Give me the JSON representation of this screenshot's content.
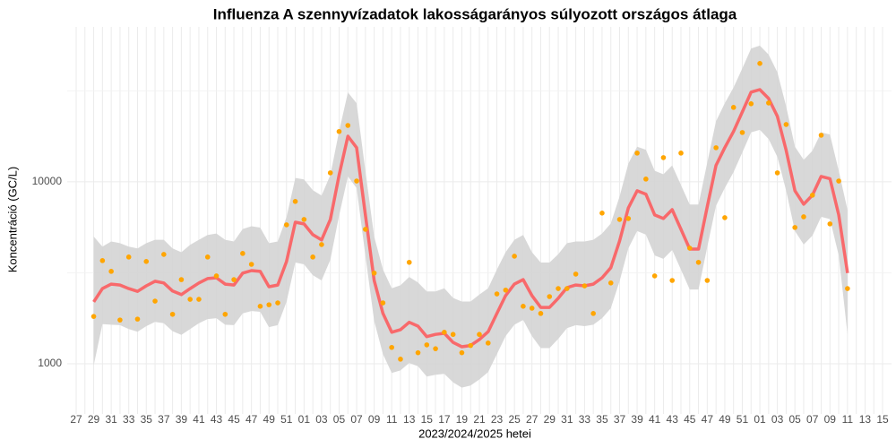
{
  "chart_data": {
    "type": "line",
    "title": "Influenza A szennyvízadatok lakosságarányos súlyozott országos átlaga",
    "xlabel": "2023/2024/2025 hetei",
    "ylabel": "Koncentráció (GC/L)",
    "log_y": true,
    "grid": true,
    "ylim": [
      530,
      71000
    ],
    "yticks": [
      1000,
      10000
    ],
    "categories": [
      "27",
      null,
      "29",
      null,
      "31",
      null,
      "33",
      null,
      "35",
      null,
      "37",
      null,
      "39",
      null,
      "41",
      null,
      "43",
      null,
      "45",
      null,
      "47",
      null,
      "49",
      null,
      "51",
      null,
      "01",
      null,
      "03",
      null,
      "05",
      null,
      "07",
      null,
      "09",
      null,
      "11",
      null,
      "13",
      null,
      "15",
      null,
      "17",
      null,
      "19",
      null,
      "21",
      null,
      "23",
      null,
      "25",
      null,
      "27",
      null,
      "29",
      null,
      "31",
      null,
      "33",
      null,
      "35",
      null,
      "37",
      null,
      "39",
      null,
      "41",
      null,
      "43",
      null,
      "45",
      null,
      "47",
      null,
      "49",
      null,
      "51",
      null,
      "01",
      null,
      "03",
      null,
      "05",
      null,
      "07",
      null,
      "09",
      null,
      "11",
      null,
      "13",
      null,
      "15"
    ],
    "band": {
      "color": "#d4d4d4",
      "upper": [
        null,
        null,
        5000,
        4400,
        4700,
        4600,
        4400,
        4300,
        4600,
        4800,
        4800,
        4300,
        4100,
        4500,
        4800,
        5100,
        5200,
        4800,
        4700,
        5500,
        5700,
        5600,
        4600,
        4700,
        6400,
        10500,
        10300,
        9000,
        8400,
        10900,
        19000,
        31000,
        27000,
        11500,
        5000,
        3300,
        2600,
        2700,
        3000,
        2800,
        2500,
        2500,
        2600,
        2300,
        2200,
        2200,
        2400,
        2600,
        3300,
        4100,
        4800,
        5100,
        4100,
        3600,
        3600,
        4000,
        4600,
        4700,
        4700,
        4800,
        5200,
        5900,
        8300,
        12600,
        15600,
        15000,
        11500,
        11000,
        12300,
        9600,
        7500,
        7500,
        12700,
        21500,
        27000,
        33000,
        42000,
        54000,
        56000,
        50000,
        40000,
        26000,
        15600,
        13200,
        14800,
        18700,
        18200,
        11500,
        7000,
        null,
        null,
        null,
        null
      ],
      "lower": [
        null,
        null,
        980,
        1650,
        1640,
        1630,
        1550,
        1500,
        1610,
        1700,
        1670,
        1510,
        1440,
        1550,
        1670,
        1760,
        1780,
        1640,
        1630,
        1890,
        1950,
        1930,
        1590,
        1630,
        2190,
        3600,
        3520,
        3070,
        2870,
        3730,
        6540,
        10700,
        9240,
        3940,
        1720,
        1130,
        890,
        920,
        1010,
        970,
        850,
        870,
        880,
        790,
        740,
        760,
        820,
        900,
        1130,
        1420,
        1640,
        1740,
        1420,
        1220,
        1220,
        1370,
        1570,
        1630,
        1610,
        1640,
        1780,
        2020,
        2840,
        4310,
        5360,
        5120,
        3940,
        3770,
        4220,
        3290,
        2560,
        2560,
        4370,
        7380,
        9240,
        11300,
        14500,
        18700,
        19300,
        17200,
        13700,
        8940,
        5360,
        4520,
        5060,
        6420,
        6240,
        3940,
        1450,
        null,
        null,
        null,
        null
      ]
    },
    "smooth": {
      "color": "#f8696b",
      "values": [
        null,
        null,
        2190,
        2590,
        2740,
        2710,
        2590,
        2500,
        2680,
        2840,
        2780,
        2510,
        2400,
        2590,
        2780,
        2940,
        2970,
        2740,
        2710,
        3150,
        3250,
        3220,
        2650,
        2710,
        3650,
        6000,
        5870,
        5120,
        4790,
        6210,
        10900,
        17800,
        15400,
        6570,
        2870,
        1890,
        1490,
        1540,
        1690,
        1610,
        1410,
        1450,
        1470,
        1310,
        1240,
        1260,
        1360,
        1500,
        1890,
        2370,
        2740,
        2900,
        2370,
        2040,
        2040,
        2290,
        2620,
        2710,
        2680,
        2740,
        2970,
        3370,
        4730,
        7190,
        8930,
        8540,
        6570,
        6280,
        7030,
        5480,
        4270,
        4270,
        7280,
        12300,
        15400,
        18900,
        24200,
        31100,
        32100,
        28700,
        22900,
        14900,
        8930,
        7530,
        8440,
        10700,
        10400,
        6570,
        3150,
        null,
        null,
        null,
        null
      ]
    },
    "observed": {
      "color": "#ffa500",
      "values": [
        null,
        null,
        1820,
        3690,
        3220,
        1740,
        3860,
        1760,
        3650,
        2210,
        3990,
        1870,
        2900,
        2260,
        2260,
        3860,
        3040,
        1870,
        2900,
        4040,
        3520,
        2070,
        2110,
        2160,
        5800,
        7800,
        6210,
        3860,
        4520,
        11200,
        18900,
        20400,
        10100,
        5480,
        3150,
        2160,
        1230,
        1060,
        3610,
        1150,
        1270,
        1210,
        1490,
        1450,
        1150,
        1260,
        1450,
        1300,
        2420,
        2540,
        3900,
        2070,
        2020,
        1890,
        2340,
        2590,
        2590,
        3110,
        2680,
        1890,
        6730,
        2780,
        6210,
        6280,
        14380,
        10350,
        3040,
        13580,
        2870,
        14380,
        4320,
        3610,
        2870,
        15390,
        6350,
        25640,
        18660,
        26840,
        44700,
        27120,
        11200,
        20650,
        5610,
        6420,
        8440,
        18030,
        5870,
        10100,
        2590,
        null,
        null,
        null,
        null
      ]
    }
  }
}
